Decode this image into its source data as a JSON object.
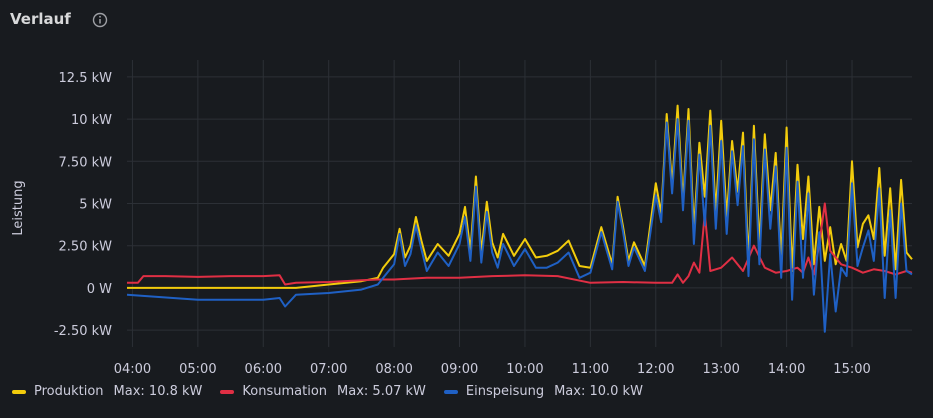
{
  "panel": {
    "title": "Verlauf"
  },
  "legend": [
    {
      "label": "Produktion",
      "max": "Max: 10.8 kW",
      "color": "#f2cc0c"
    },
    {
      "label": "Konsumation",
      "max": "Max: 5.07 kW",
      "color": "#e02f44"
    },
    {
      "label": "Einspeisung",
      "max": "Max: 10.0 kW",
      "color": "#1f60c4"
    }
  ],
  "chart_data": {
    "type": "line",
    "ylabel": "Leistung",
    "ylim": [
      -3.5,
      13.5
    ],
    "y_ticks": [
      {
        "value": 12.5,
        "label": "12.5 kW"
      },
      {
        "value": 10,
        "label": "10 kW"
      },
      {
        "value": 7.5,
        "label": "7.50 kW"
      },
      {
        "value": 5,
        "label": "5 kW"
      },
      {
        "value": 2.5,
        "label": "2.50 kW"
      },
      {
        "value": 0,
        "label": "0 W"
      },
      {
        "value": -2.5,
        "label": "-2.50 kW"
      }
    ],
    "xlim": [
      "03:55",
      "15:55"
    ],
    "x_ticks": [
      "04:00",
      "05:00",
      "06:00",
      "07:00",
      "08:00",
      "09:00",
      "10:00",
      "11:00",
      "12:00",
      "13:00",
      "14:00",
      "15:00"
    ],
    "grid": true,
    "legend_position": "bottom-left",
    "series": [
      {
        "name": "Produktion",
        "color": "#f2cc0c",
        "x": [
          "03:55",
          "06:30",
          "07:00",
          "07:30",
          "07:45",
          "07:50",
          "08:00",
          "08:05",
          "08:10",
          "08:15",
          "08:20",
          "08:25",
          "08:30",
          "08:40",
          "08:50",
          "09:00",
          "09:05",
          "09:10",
          "09:15",
          "09:20",
          "09:25",
          "09:30",
          "09:35",
          "09:40",
          "09:50",
          "10:00",
          "10:10",
          "10:20",
          "10:30",
          "10:40",
          "10:50",
          "11:00",
          "11:10",
          "11:20",
          "11:25",
          "11:30",
          "11:35",
          "11:40",
          "11:50",
          "12:00",
          "12:05",
          "12:10",
          "12:15",
          "12:20",
          "12:25",
          "12:30",
          "12:35",
          "12:40",
          "12:45",
          "12:50",
          "12:55",
          "13:00",
          "13:05",
          "13:10",
          "13:15",
          "13:20",
          "13:25",
          "13:30",
          "13:35",
          "13:40",
          "13:45",
          "13:50",
          "13:55",
          "14:00",
          "14:05",
          "14:10",
          "14:15",
          "14:20",
          "14:25",
          "14:30",
          "14:35",
          "14:40",
          "14:45",
          "14:50",
          "14:55",
          "15:00",
          "15:05",
          "15:10",
          "15:15",
          "15:20",
          "15:25",
          "15:30",
          "15:35",
          "15:40",
          "15:45",
          "15:50",
          "15:55"
        ],
        "y": [
          0,
          0,
          0.2,
          0.4,
          0.6,
          1.2,
          2.0,
          3.5,
          1.8,
          2.5,
          4.2,
          2.8,
          1.6,
          2.6,
          1.9,
          3.2,
          4.8,
          2.2,
          6.6,
          2.1,
          5.1,
          2.7,
          1.8,
          3.2,
          1.9,
          2.9,
          1.8,
          1.9,
          2.2,
          2.8,
          1.3,
          1.2,
          3.6,
          1.4,
          5.4,
          3.6,
          1.6,
          2.7,
          1.3,
          6.2,
          4.4,
          10.3,
          6.1,
          10.8,
          5.1,
          10.6,
          3.4,
          8.6,
          5.4,
          10.5,
          4.5,
          9.9,
          4.2,
          8.7,
          5.7,
          9.2,
          1.6,
          9.6,
          2.5,
          9.1,
          4.6,
          8.0,
          1.7,
          9.5,
          1.0,
          7.3,
          2.9,
          6.6,
          1.4,
          4.8,
          1.6,
          3.6,
          1.4,
          2.6,
          1.6,
          7.5,
          2.4,
          3.8,
          4.3,
          2.9,
          7.1,
          1.9,
          5.9,
          1.1,
          6.4,
          2.1,
          1.7
        ]
      },
      {
        "name": "Konsumation",
        "color": "#e02f44",
        "x": [
          "03:55",
          "04:05",
          "04:10",
          "04:30",
          "05:00",
          "05:30",
          "06:00",
          "06:15",
          "06:20",
          "06:30",
          "07:00",
          "07:30",
          "07:45",
          "08:00",
          "08:30",
          "09:00",
          "09:30",
          "10:00",
          "10:30",
          "11:00",
          "11:30",
          "12:00",
          "12:15",
          "12:20",
          "12:25",
          "12:30",
          "12:35",
          "12:40",
          "12:45",
          "12:50",
          "13:00",
          "13:10",
          "13:20",
          "13:30",
          "13:40",
          "13:50",
          "14:00",
          "14:10",
          "14:15",
          "14:20",
          "14:25",
          "14:30",
          "14:35",
          "14:40",
          "14:50",
          "15:00",
          "15:10",
          "15:20",
          "15:30",
          "15:40",
          "15:50",
          "15:55"
        ],
        "y": [
          0.3,
          0.3,
          0.7,
          0.7,
          0.65,
          0.7,
          0.7,
          0.75,
          0.2,
          0.3,
          0.35,
          0.45,
          0.5,
          0.5,
          0.6,
          0.6,
          0.7,
          0.75,
          0.7,
          0.3,
          0.35,
          0.3,
          0.3,
          0.8,
          0.3,
          0.7,
          1.5,
          0.9,
          4.4,
          1.0,
          1.2,
          1.8,
          1.0,
          2.5,
          1.2,
          0.9,
          1.0,
          1.2,
          0.9,
          1.8,
          0.8,
          2.6,
          5.0,
          2.2,
          1.4,
          1.2,
          0.9,
          1.1,
          1.0,
          0.8,
          1.0,
          0.9
        ]
      },
      {
        "name": "Einspeisung",
        "color": "#1f60c4",
        "x": [
          "03:55",
          "05:00",
          "06:00",
          "06:15",
          "06:20",
          "06:30",
          "07:00",
          "07:30",
          "07:45",
          "07:50",
          "08:00",
          "08:05",
          "08:10",
          "08:15",
          "08:20",
          "08:25",
          "08:30",
          "08:40",
          "08:50",
          "09:00",
          "09:05",
          "09:10",
          "09:15",
          "09:20",
          "09:25",
          "09:30",
          "09:35",
          "09:40",
          "09:50",
          "10:00",
          "10:10",
          "10:20",
          "10:30",
          "10:40",
          "10:50",
          "11:00",
          "11:10",
          "11:20",
          "11:25",
          "11:30",
          "11:35",
          "11:40",
          "11:50",
          "12:00",
          "12:05",
          "12:10",
          "12:15",
          "12:20",
          "12:25",
          "12:30",
          "12:35",
          "12:40",
          "12:45",
          "12:50",
          "12:55",
          "13:00",
          "13:05",
          "13:10",
          "13:15",
          "13:20",
          "13:25",
          "13:30",
          "13:35",
          "13:40",
          "13:45",
          "13:50",
          "13:55",
          "14:00",
          "14:05",
          "14:10",
          "14:15",
          "14:20",
          "14:25",
          "14:30",
          "14:35",
          "14:40",
          "14:45",
          "14:50",
          "14:55",
          "15:00",
          "15:05",
          "15:10",
          "15:15",
          "15:20",
          "15:25",
          "15:30",
          "15:35",
          "15:40",
          "15:45",
          "15:50",
          "15:55"
        ],
        "y": [
          -0.4,
          -0.7,
          -0.7,
          -0.6,
          -1.1,
          -0.4,
          -0.3,
          -0.1,
          0.2,
          0.6,
          1.4,
          3.2,
          1.3,
          2.0,
          3.7,
          2.3,
          1.0,
          2.1,
          1.3,
          2.6,
          4.2,
          1.6,
          6.0,
          1.5,
          4.5,
          2.1,
          1.2,
          2.6,
          1.3,
          2.3,
          1.2,
          1.2,
          1.5,
          2.1,
          0.6,
          0.9,
          3.3,
          1.1,
          5.1,
          3.3,
          1.3,
          2.4,
          1.0,
          5.5,
          3.9,
          9.8,
          5.6,
          10.0,
          4.6,
          9.9,
          2.6,
          7.9,
          3.7,
          9.6,
          3.5,
          8.7,
          3.2,
          8.1,
          4.9,
          8.4,
          0.7,
          8.8,
          1.4,
          8.2,
          3.5,
          7.2,
          0.6,
          8.3,
          -0.7,
          6.3,
          0.6,
          5.6,
          -0.4,
          3.3,
          -2.6,
          2.0,
          -1.4,
          1.2,
          0.7,
          6.2,
          1.3,
          2.4,
          3.4,
          1.6,
          5.9,
          -0.6,
          4.6,
          -0.6,
          5.0,
          1.0,
          0.8
        ]
      }
    ]
  }
}
